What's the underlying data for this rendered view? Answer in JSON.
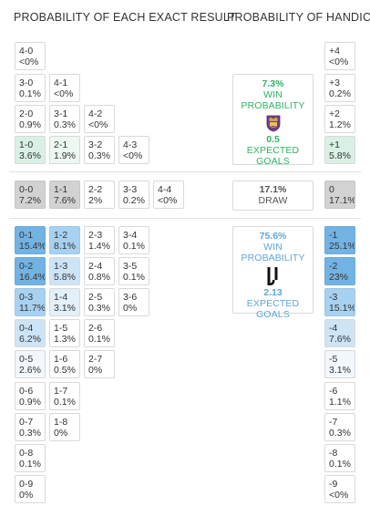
{
  "headers": {
    "exact": "PROBABILITY OF EACH EXACT RESULT",
    "handicap": "PROBABILITY OF HANDICAP"
  },
  "exact": {
    "home": [
      {
        "score": "4-0",
        "pct": "<0%"
      },
      {
        "score": "3-0",
        "pct": "0.1%"
      },
      {
        "score": "4-1",
        "pct": "<0%"
      },
      {
        "score": "2-0",
        "pct": "0.9%"
      },
      {
        "score": "3-1",
        "pct": "0.3%"
      },
      {
        "score": "4-2",
        "pct": "<0%"
      },
      {
        "score": "1-0",
        "pct": "3.6%"
      },
      {
        "score": "2-1",
        "pct": "1.9%"
      },
      {
        "score": "3-2",
        "pct": "0.3%"
      },
      {
        "score": "4-3",
        "pct": "<0%"
      }
    ],
    "draw": [
      {
        "score": "0-0",
        "pct": "7.2%"
      },
      {
        "score": "1-1",
        "pct": "7.6%"
      },
      {
        "score": "2-2",
        "pct": "2%"
      },
      {
        "score": "3-3",
        "pct": "0.2%"
      },
      {
        "score": "4-4",
        "pct": "<0%"
      }
    ],
    "away": [
      {
        "score": "0-1",
        "pct": "15.4%"
      },
      {
        "score": "1-2",
        "pct": "8.1%"
      },
      {
        "score": "2-3",
        "pct": "1.4%"
      },
      {
        "score": "3-4",
        "pct": "0.1%"
      },
      {
        "score": "0-2",
        "pct": "16.4%"
      },
      {
        "score": "1-3",
        "pct": "5.8%"
      },
      {
        "score": "2-4",
        "pct": "0.8%"
      },
      {
        "score": "3-5",
        "pct": "0.1%"
      },
      {
        "score": "0-3",
        "pct": "11.7%"
      },
      {
        "score": "1-4",
        "pct": "3.1%"
      },
      {
        "score": "2-5",
        "pct": "0.3%"
      },
      {
        "score": "3-6",
        "pct": "0%"
      },
      {
        "score": "0-4",
        "pct": "6.2%"
      },
      {
        "score": "1-5",
        "pct": "1.3%"
      },
      {
        "score": "2-6",
        "pct": "0.1%"
      },
      {
        "score": "0-5",
        "pct": "2.6%"
      },
      {
        "score": "1-6",
        "pct": "0.5%"
      },
      {
        "score": "2-7",
        "pct": "0%"
      },
      {
        "score": "0-6",
        "pct": "0.9%"
      },
      {
        "score": "1-7",
        "pct": "0.1%"
      },
      {
        "score": "0-7",
        "pct": "0.3%"
      },
      {
        "score": "1-8",
        "pct": "0%"
      },
      {
        "score": "0-8",
        "pct": "0.1%"
      },
      {
        "score": "0-9",
        "pct": "0%"
      }
    ]
  },
  "handicap": {
    "home": [
      {
        "label": "+4",
        "pct": "<0%"
      },
      {
        "label": "+3",
        "pct": "0.2%"
      },
      {
        "label": "+2",
        "pct": "1.2%"
      },
      {
        "label": "+1",
        "pct": "5.8%"
      }
    ],
    "draw": [
      {
        "label": "0",
        "pct": "17.1%"
      }
    ],
    "away": [
      {
        "label": "-1",
        "pct": "25.1%"
      },
      {
        "label": "-2",
        "pct": "23%"
      },
      {
        "label": "-3",
        "pct": "15.1%"
      },
      {
        "label": "-4",
        "pct": "7.6%"
      },
      {
        "label": "-5",
        "pct": "3.1%"
      },
      {
        "label": "-6",
        "pct": "1.1%"
      },
      {
        "label": "-7",
        "pct": "0.3%"
      },
      {
        "label": "-8",
        "pct": "0.1%"
      },
      {
        "label": "-9",
        "pct": "<0%"
      }
    ]
  },
  "home_card": {
    "win_pct": "7.3%",
    "win_label": "WIN PROBABILITY",
    "goals": "0.5",
    "goals_label": "EXPECTED GOALS",
    "logo": "home-team-crest-icon"
  },
  "draw_card": {
    "pct": "17.1%",
    "label": "DRAW"
  },
  "away_card": {
    "win_pct": "75.6%",
    "win_label": "WIN PROBABILITY",
    "goals": "2.13",
    "goals_label": "EXPECTED GOALS",
    "logo": "juventus-logo-icon"
  },
  "colors": {
    "green_text": "#2cb462",
    "blue_text": "#5aa6dc",
    "green_strong": "#d9f1e4",
    "green_light": "#ecf8f1",
    "draw_gray": "#d2d2d2",
    "blue_strongest": "#73b3e3",
    "blue_strong": "#a7d1f0",
    "blue_mid": "#cde4f6",
    "blue_light": "#e3eff9",
    "blue_faint": "#f1f7fc"
  }
}
